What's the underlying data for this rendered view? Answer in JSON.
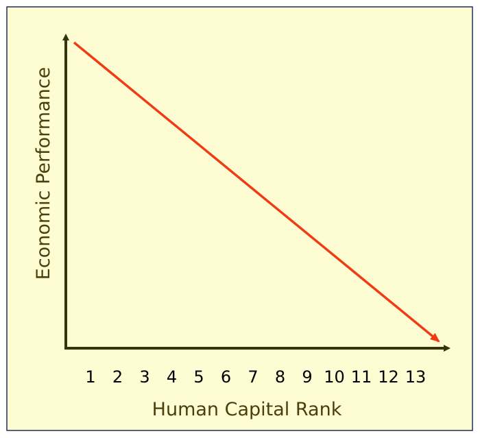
{
  "y_axis": {
    "label": "Economic Performance"
  },
  "x_axis": {
    "label": "Human Capital Rank",
    "ticks": [
      1,
      2,
      3,
      4,
      5,
      6,
      7,
      8,
      9,
      10,
      11,
      12,
      13
    ]
  }
}
